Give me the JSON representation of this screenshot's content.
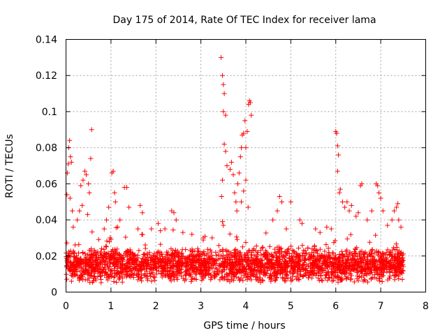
{
  "chart_data": {
    "type": "scatter",
    "title": "Day 175 of 2014, Rate Of TEC Index for receiver lama",
    "xlabel": "GPS time / hours",
    "ylabel": "ROTI / TECUs",
    "xlim": [
      0,
      8
    ],
    "ylim": [
      0,
      0.14
    ],
    "xticks": [
      0,
      1,
      2,
      3,
      4,
      5,
      6,
      7,
      8
    ],
    "xtick_labels": [
      "0",
      "1",
      "2",
      "3",
      "4",
      "5",
      "6",
      "7",
      "8"
    ],
    "yticks": [
      0,
      0.02,
      0.04,
      0.06,
      0.08,
      0.1,
      0.12,
      0.14
    ],
    "ytick_labels": [
      "0",
      "0.02",
      "0.04",
      "0.06",
      "0.08",
      "0.1",
      "0.12",
      "0.14"
    ],
    "grid": true,
    "marker": "+",
    "color": "#ff0000",
    "series": [
      {
        "name": "ROTI",
        "x_range": [
          0.0,
          7.5
        ],
        "baseline_band": [
          0.005,
          0.025
        ],
        "points": [
          [
            0.02,
            0.054
          ],
          [
            0.03,
            0.066
          ],
          [
            0.05,
            0.071
          ],
          [
            0.06,
            0.08
          ],
          [
            0.08,
            0.084
          ],
          [
            0.1,
            0.075
          ],
          [
            0.12,
            0.072
          ],
          [
            0.09,
            0.052
          ],
          [
            0.14,
            0.045
          ],
          [
            0.16,
            0.036
          ],
          [
            0.25,
            0.04
          ],
          [
            0.3,
            0.045
          ],
          [
            0.33,
            0.059
          ],
          [
            0.38,
            0.062
          ],
          [
            0.42,
            0.067
          ],
          [
            0.45,
            0.065
          ],
          [
            0.5,
            0.06
          ],
          [
            0.52,
            0.055
          ],
          [
            0.55,
            0.074
          ],
          [
            0.57,
            0.09
          ],
          [
            0.48,
            0.043
          ],
          [
            0.36,
            0.048
          ],
          [
            0.85,
            0.035
          ],
          [
            0.9,
            0.04
          ],
          [
            0.95,
            0.047
          ],
          [
            1.02,
            0.066
          ],
          [
            1.05,
            0.067
          ],
          [
            1.08,
            0.055
          ],
          [
            1.1,
            0.05
          ],
          [
            1.2,
            0.04
          ],
          [
            1.3,
            0.058
          ],
          [
            1.35,
            0.058
          ],
          [
            1.4,
            0.047
          ],
          [
            1.15,
            0.036
          ],
          [
            0.98,
            0.03
          ],
          [
            1.6,
            0.035
          ],
          [
            1.65,
            0.048
          ],
          [
            1.7,
            0.044
          ],
          [
            1.9,
            0.035
          ],
          [
            2.05,
            0.038
          ],
          [
            2.1,
            0.034
          ],
          [
            2.2,
            0.035
          ],
          [
            2.35,
            0.045
          ],
          [
            2.4,
            0.044
          ],
          [
            2.45,
            0.04
          ],
          [
            2.6,
            0.033
          ],
          [
            2.8,
            0.032
          ],
          [
            3.05,
            0.03
          ],
          [
            3.25,
            0.03
          ],
          [
            3.45,
            0.13
          ],
          [
            3.48,
            0.12
          ],
          [
            3.5,
            0.115
          ],
          [
            3.52,
            0.11
          ],
          [
            3.5,
            0.1
          ],
          [
            3.55,
            0.098
          ],
          [
            3.52,
            0.082
          ],
          [
            3.55,
            0.078
          ],
          [
            3.58,
            0.07
          ],
          [
            3.48,
            0.062
          ],
          [
            3.46,
            0.053
          ],
          [
            3.48,
            0.039
          ],
          [
            3.5,
            0.037
          ],
          [
            3.65,
            0.068
          ],
          [
            3.68,
            0.072
          ],
          [
            3.72,
            0.065
          ],
          [
            3.75,
            0.055
          ],
          [
            3.78,
            0.05
          ],
          [
            3.8,
            0.045
          ],
          [
            3.82,
            0.06
          ],
          [
            3.85,
            0.066
          ],
          [
            3.88,
            0.075
          ],
          [
            3.9,
            0.08
          ],
          [
            3.92,
            0.087
          ],
          [
            3.95,
            0.088
          ],
          [
            3.98,
            0.095
          ],
          [
            4.0,
            0.08
          ],
          [
            4.03,
            0.089
          ],
          [
            4.06,
            0.104
          ],
          [
            4.08,
            0.106
          ],
          [
            4.1,
            0.105
          ],
          [
            4.12,
            0.098
          ],
          [
            4.0,
            0.062
          ],
          [
            3.95,
            0.056
          ],
          [
            3.9,
            0.05
          ],
          [
            4.05,
            0.047
          ],
          [
            4.6,
            0.04
          ],
          [
            4.7,
            0.045
          ],
          [
            4.75,
            0.053
          ],
          [
            4.8,
            0.05
          ],
          [
            4.9,
            0.035
          ],
          [
            5.0,
            0.05
          ],
          [
            5.2,
            0.04
          ],
          [
            5.25,
            0.038
          ],
          [
            5.55,
            0.035
          ],
          [
            5.65,
            0.033
          ],
          [
            5.8,
            0.036
          ],
          [
            5.9,
            0.035
          ],
          [
            6.0,
            0.089
          ],
          [
            6.02,
            0.088
          ],
          [
            6.04,
            0.081
          ],
          [
            6.06,
            0.076
          ],
          [
            6.04,
            0.067
          ],
          [
            6.08,
            0.055
          ],
          [
            6.1,
            0.057
          ],
          [
            6.15,
            0.05
          ],
          [
            6.2,
            0.047
          ],
          [
            6.25,
            0.05
          ],
          [
            6.3,
            0.045
          ],
          [
            6.35,
            0.048
          ],
          [
            6.45,
            0.042
          ],
          [
            6.5,
            0.044
          ],
          [
            6.55,
            0.059
          ],
          [
            6.58,
            0.06
          ],
          [
            6.7,
            0.04
          ],
          [
            6.8,
            0.045
          ],
          [
            6.9,
            0.06
          ],
          [
            6.93,
            0.059
          ],
          [
            6.96,
            0.055
          ],
          [
            7.0,
            0.052
          ],
          [
            7.05,
            0.045
          ],
          [
            7.15,
            0.037
          ],
          [
            7.25,
            0.04
          ],
          [
            7.3,
            0.045
          ],
          [
            7.35,
            0.047
          ],
          [
            7.38,
            0.049
          ],
          [
            7.4,
            0.04
          ],
          [
            7.45,
            0.036
          ]
        ]
      }
    ]
  }
}
